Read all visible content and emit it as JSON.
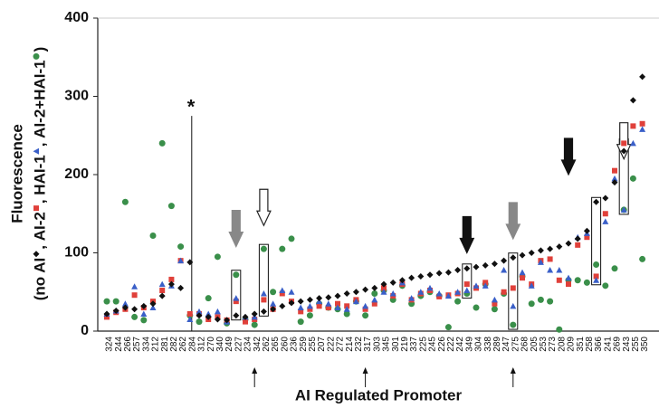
{
  "chart_data": {
    "type": "scatter",
    "x_label": "AI Regulated Promoter",
    "y_label": "Fluorescence",
    "y_label_open": "(",
    "y_label_separator": ", ",
    "y_label_close": ")",
    "annotation": "*",
    "categories": [
      "324",
      "244",
      "266",
      "257",
      "334",
      "212",
      "281",
      "282",
      "262",
      "284",
      "312",
      "270",
      "340",
      "249",
      "227",
      "234",
      "342",
      "262",
      "265",
      "260",
      "236",
      "259",
      "255",
      "207",
      "222",
      "272",
      "214",
      "232",
      "317",
      "303",
      "345",
      "301",
      "219",
      "337",
      "225",
      "245",
      "226",
      "222",
      "242",
      "349",
      "304",
      "338",
      "289",
      "247",
      "275",
      "268",
      "205",
      "253",
      "273",
      "208",
      "209",
      "351",
      "258",
      "366",
      "241",
      "269",
      "243",
      "255",
      "350"
    ],
    "series": [
      {
        "name": "no AI",
        "color": "#111111",
        "marker": "diamond",
        "values": [
          22,
          26,
          30,
          28,
          32,
          35,
          45,
          60,
          55,
          88,
          20,
          18,
          15,
          14,
          20,
          18,
          22,
          25,
          28,
          32,
          36,
          38,
          40,
          42,
          43,
          45,
          48,
          50,
          53,
          55,
          60,
          62,
          65,
          68,
          70,
          72,
          74,
          75,
          78,
          80,
          82,
          84,
          86,
          90,
          94,
          97,
          100,
          103,
          105,
          108,
          112,
          118,
          128,
          165,
          170,
          190,
          230,
          295,
          325
        ]
      },
      {
        "name": "AI-2",
        "color": "#e0403a",
        "marker": "square",
        "values": [
          18,
          24,
          28,
          46,
          30,
          38,
          52,
          66,
          90,
          22,
          22,
          15,
          18,
          14,
          38,
          12,
          15,
          40,
          28,
          48,
          38,
          25,
          28,
          32,
          30,
          35,
          32,
          40,
          28,
          35,
          55,
          45,
          60,
          40,
          48,
          52,
          44,
          46,
          48,
          60,
          55,
          62,
          35,
          50,
          55,
          68,
          60,
          90,
          92,
          65,
          60,
          110,
          120,
          70,
          150,
          205,
          240,
          262,
          265
        ]
      },
      {
        "name": "HAI-1",
        "color": "#3a5fc8",
        "marker": "triangle",
        "values": [
          22,
          26,
          35,
          57,
          22,
          30,
          60,
          58,
          90,
          15,
          25,
          22,
          25,
          12,
          42,
          18,
          18,
          48,
          35,
          52,
          50,
          30,
          32,
          38,
          35,
          30,
          28,
          38,
          32,
          40,
          50,
          48,
          62,
          42,
          50,
          55,
          48,
          45,
          50,
          52,
          58,
          58,
          40,
          78,
          32,
          75,
          58,
          88,
          78,
          78,
          68,
          120,
          125,
          65,
          140,
          195,
          155,
          240,
          258
        ]
      },
      {
        "name": "AI-2+HAI-1",
        "color": "#3a8f4a",
        "marker": "circle",
        "values": [
          38,
          38,
          165,
          18,
          14,
          122,
          240,
          160,
          108,
          20,
          12,
          42,
          95,
          10,
          72,
          15,
          8,
          105,
          50,
          105,
          118,
          12,
          20,
          35,
          30,
          28,
          22,
          38,
          20,
          48,
          52,
          40,
          58,
          35,
          45,
          50,
          45,
          5,
          38,
          48,
          30,
          60,
          28,
          48,
          8,
          70,
          35,
          40,
          38,
          2,
          65,
          65,
          62,
          85,
          58,
          80,
          155,
          195,
          92
        ]
      }
    ],
    "ylim": [
      0,
      400
    ],
    "yticks": [
      0,
      100,
      200,
      300,
      400
    ]
  }
}
